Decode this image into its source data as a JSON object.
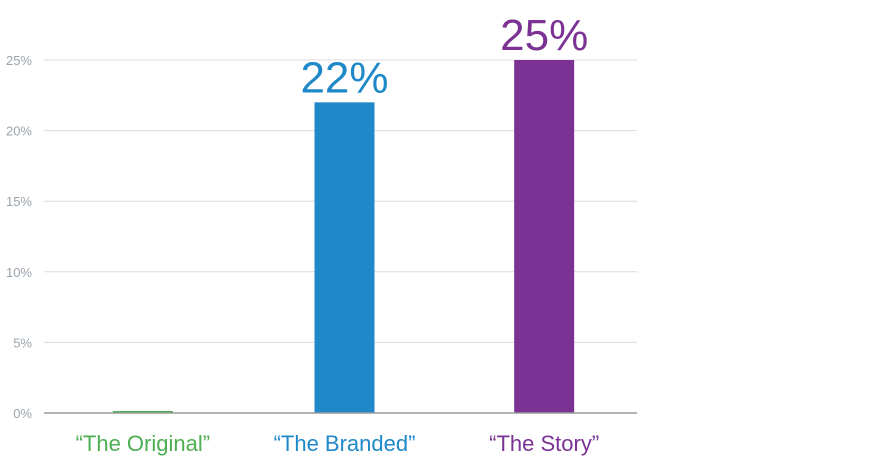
{
  "chart_data": {
    "type": "bar",
    "categories": [
      "“The Original”",
      "“The Branded”",
      "“The Story”"
    ],
    "values": [
      0,
      22,
      25
    ],
    "data_labels": [
      "",
      "22%",
      "25%"
    ],
    "colors": [
      "#4caf50",
      "#1e88c8",
      "#7b3294"
    ],
    "y_ticks": [
      0,
      5,
      10,
      15,
      20,
      25
    ],
    "y_tick_labels": [
      "0%",
      "5%",
      "10%",
      "15%",
      "20%",
      "25%"
    ],
    "ylim": [
      0,
      25
    ],
    "grid": true,
    "title": "",
    "xlabel": "",
    "ylabel": ""
  }
}
